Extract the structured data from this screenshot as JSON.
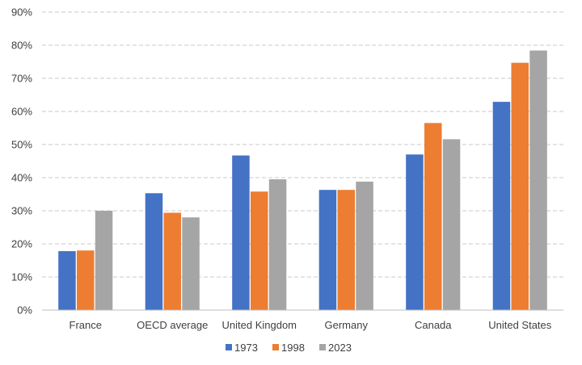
{
  "chart_data": {
    "type": "bar",
    "title": "",
    "xlabel": "",
    "ylabel": "",
    "ylim": [
      0,
      90
    ],
    "y_ticks": [
      0,
      10,
      20,
      30,
      40,
      50,
      60,
      70,
      80,
      90
    ],
    "y_tick_suffix": "%",
    "grid": true,
    "legend_position": "bottom",
    "categories": [
      "France",
      "OECD average",
      "United Kingdom",
      "Germany",
      "Canada",
      "United States"
    ],
    "series": [
      {
        "name": "1973",
        "color": "#4472C4",
        "values": [
          17.8,
          35.3,
          46.7,
          36.3,
          47.0,
          62.9
        ]
      },
      {
        "name": "1998",
        "color": "#ED7D31",
        "values": [
          18.0,
          29.4,
          35.8,
          36.3,
          56.5,
          74.7
        ]
      },
      {
        "name": "2023",
        "color": "#A5A5A5",
        "values": [
          30.0,
          28.0,
          39.5,
          38.8,
          51.6,
          78.4
        ]
      }
    ]
  }
}
